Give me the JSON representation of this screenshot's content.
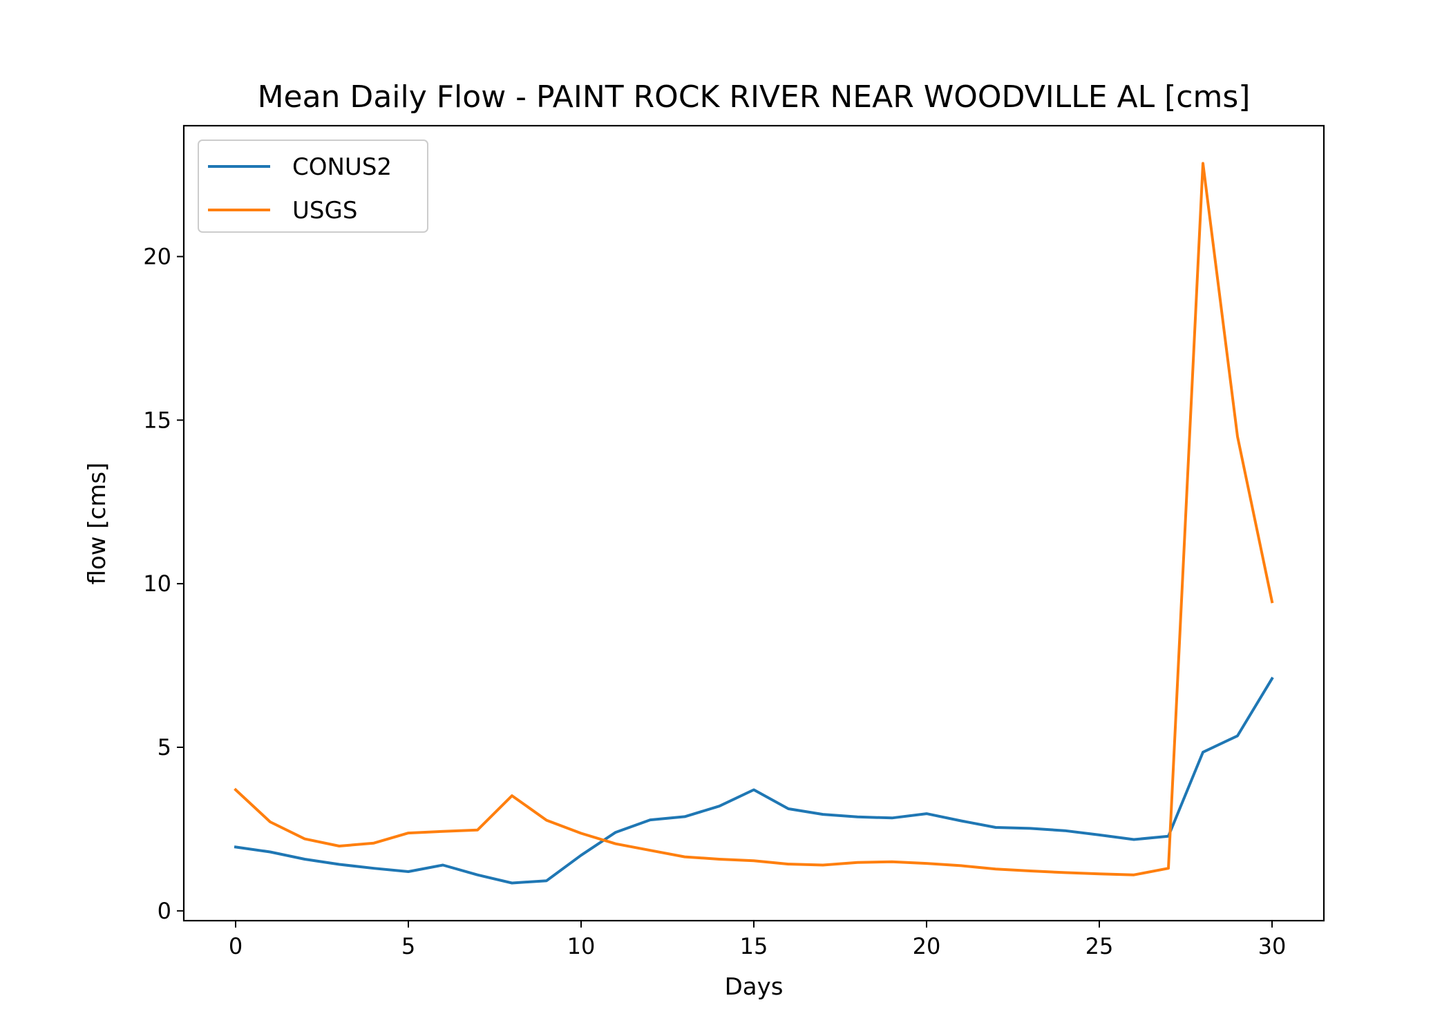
{
  "chart_data": {
    "type": "line",
    "title": "Mean Daily Flow - PAINT ROCK RIVER NEAR WOODVILLE AL [cms]",
    "xlabel": "Days",
    "ylabel": "flow [cms]",
    "xlim": [
      -1.5,
      31.5
    ],
    "ylim": [
      -0.3,
      24.0
    ],
    "xticks": [
      0,
      5,
      10,
      15,
      20,
      25,
      30
    ],
    "yticks": [
      0,
      5,
      10,
      15,
      20
    ],
    "grid": false,
    "legend_position": "top-left",
    "x": [
      0,
      1,
      2,
      3,
      4,
      5,
      6,
      7,
      8,
      9,
      10,
      11,
      12,
      13,
      14,
      15,
      16,
      17,
      18,
      19,
      20,
      21,
      22,
      23,
      24,
      25,
      26,
      27,
      28,
      29,
      30
    ],
    "series": [
      {
        "name": "CONUS2",
        "color": "#1f77b4",
        "values": [
          1.95,
          1.8,
          1.58,
          1.42,
          1.3,
          1.2,
          1.4,
          1.1,
          0.85,
          0.92,
          1.7,
          2.4,
          2.78,
          2.88,
          3.2,
          3.7,
          3.12,
          2.95,
          2.87,
          2.84,
          2.97,
          2.75,
          2.55,
          2.52,
          2.45,
          2.32,
          2.18,
          2.28,
          4.85,
          5.35,
          7.1
        ]
      },
      {
        "name": "USGS",
        "color": "#ff7f0e",
        "values": [
          3.7,
          2.72,
          2.2,
          1.98,
          2.07,
          2.38,
          2.43,
          2.47,
          3.52,
          2.77,
          2.37,
          2.05,
          1.85,
          1.65,
          1.58,
          1.53,
          1.43,
          1.4,
          1.48,
          1.5,
          1.45,
          1.38,
          1.28,
          1.22,
          1.17,
          1.13,
          1.1,
          1.3,
          22.85,
          14.5,
          9.45
        ]
      }
    ]
  }
}
